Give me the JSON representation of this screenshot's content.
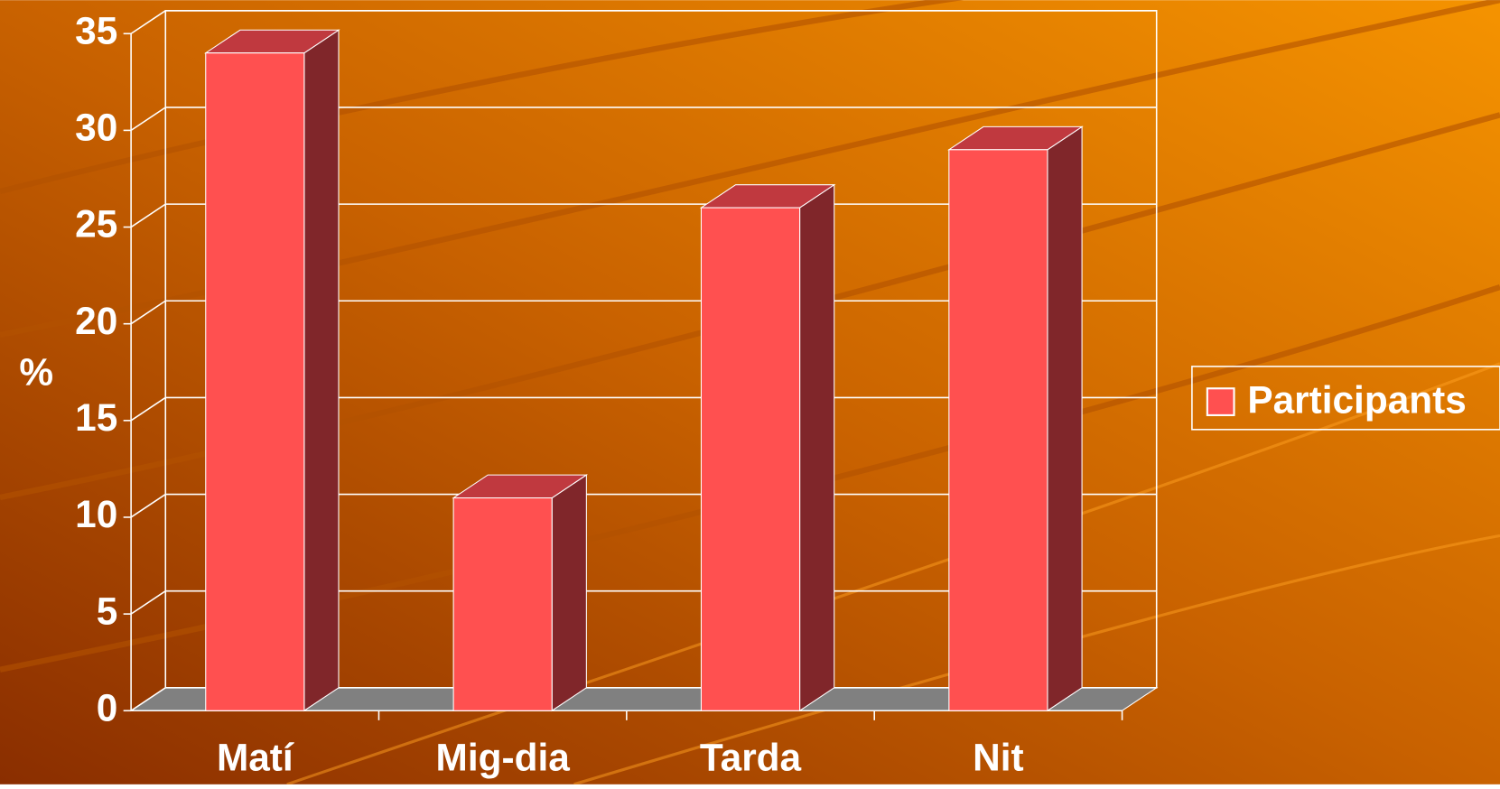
{
  "chart_data": {
    "type": "bar3d",
    "y_label": "%",
    "categories": [
      "Matí",
      "Mig-dia",
      "Tarda",
      "Nit"
    ],
    "series": [
      {
        "name": "Participants",
        "color": "#ff5050",
        "values": [
          34,
          11,
          26,
          29
        ]
      }
    ],
    "ylim": [
      0,
      35
    ],
    "yticks": [
      0,
      5,
      10,
      15,
      20,
      25,
      30,
      35
    ],
    "grid": true,
    "legend": "right"
  }
}
